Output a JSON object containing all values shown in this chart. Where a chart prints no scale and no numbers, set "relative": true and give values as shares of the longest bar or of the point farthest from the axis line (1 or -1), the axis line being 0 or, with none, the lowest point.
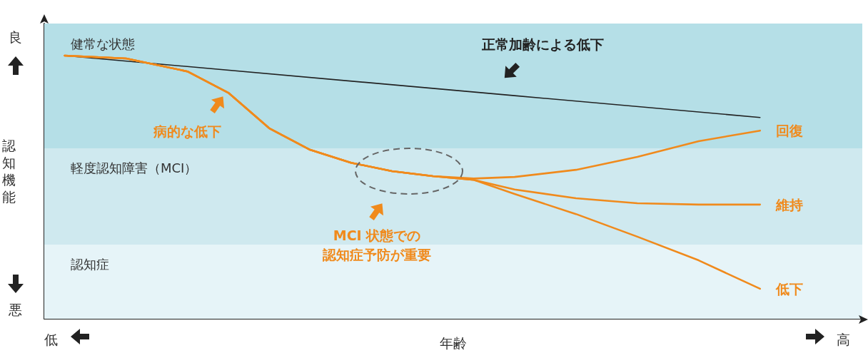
{
  "chart_data": {
    "type": "line",
    "relative": true,
    "xlabel": "年齢",
    "ylabel": "認知機能",
    "categories": [
      null,
      null,
      null,
      null,
      null,
      null,
      null,
      null,
      null,
      null,
      null,
      null,
      null,
      null,
      null,
      null,
      null,
      null,
      null,
      null,
      null,
      null,
      null,
      null,
      null,
      null,
      null,
      null,
      null,
      null,
      null,
      null,
      null,
      null,
      null,
      null,
      null,
      null,
      null,
      null,
      null
    ],
    "series": [
      {
        "name": "正常加齢による低下",
        "color": "#222222",
        "values": [
          null,
          1.0,
          null,
          null,
          null,
          null,
          null,
          null,
          null,
          null,
          null,
          null,
          null,
          null,
          null,
          null,
          null,
          null,
          null,
          null,
          null,
          null,
          null,
          0.848,
          null,
          null,
          null,
          null,
          null,
          null,
          null,
          null,
          null,
          null,
          null,
          0.765,
          null,
          null,
          null,
          null,
          null
        ]
      },
      {
        "name": "回復",
        "color": "#f08a1c",
        "values": [
          null,
          1.0,
          null,
          null,
          0.989,
          null,
          null,
          0.94,
          null,
          0.859,
          null,
          0.724,
          null,
          0.642,
          null,
          0.593,
          null,
          0.561,
          null,
          0.542,
          null,
          0.533,
          null,
          0.539,
          null,
          null,
          0.566,
          null,
          null,
          0.615,
          null,
          null,
          0.675,
          null,
          null,
          0.715,
          null,
          null,
          null,
          null,
          null
        ]
      },
      {
        "name": "維持",
        "color": "#f08a1c",
        "values": [
          null,
          1.0,
          null,
          null,
          0.989,
          null,
          null,
          0.94,
          null,
          0.859,
          null,
          0.724,
          null,
          0.642,
          null,
          0.593,
          null,
          0.561,
          null,
          0.542,
          null,
          0.528,
          null,
          0.491,
          null,
          null,
          0.458,
          null,
          null,
          0.439,
          null,
          null,
          0.434,
          null,
          null,
          0.434,
          null,
          null,
          null,
          null,
          null
        ]
      },
      {
        "name": "低下",
        "color": "#f08a1c",
        "values": [
          null,
          1.0,
          null,
          null,
          0.989,
          null,
          null,
          0.94,
          null,
          0.859,
          null,
          0.724,
          null,
          0.642,
          null,
          0.593,
          null,
          0.561,
          null,
          0.542,
          null,
          0.528,
          null,
          0.474,
          null,
          null,
          0.398,
          null,
          null,
          0.312,
          null,
          null,
          0.222,
          null,
          null,
          0.114,
          null,
          null,
          null,
          null,
          null
        ]
      }
    ],
    "bands": [
      {
        "axis": "y",
        "from": 0.648,
        "to": 1.122,
        "label": "健常な状態",
        "color": "#b5dfe7"
      },
      {
        "axis": "y",
        "from": 0.282,
        "to": 0.648,
        "label": "軽度認知障害（MCI）",
        "color": "#cfe9ef"
      },
      {
        "axis": "y",
        "from": 0,
        "to": 0.282,
        "label": "認知症",
        "color": "#e6f4f8"
      }
    ],
    "annotations": [
      "良",
      "悪",
      "低",
      "高",
      "MCI 状態での",
      "認知症予防が重要",
      "病的な低下"
    ],
    "legend": false,
    "grid": false,
    "marker": "none",
    "line_style": "solid"
  }
}
